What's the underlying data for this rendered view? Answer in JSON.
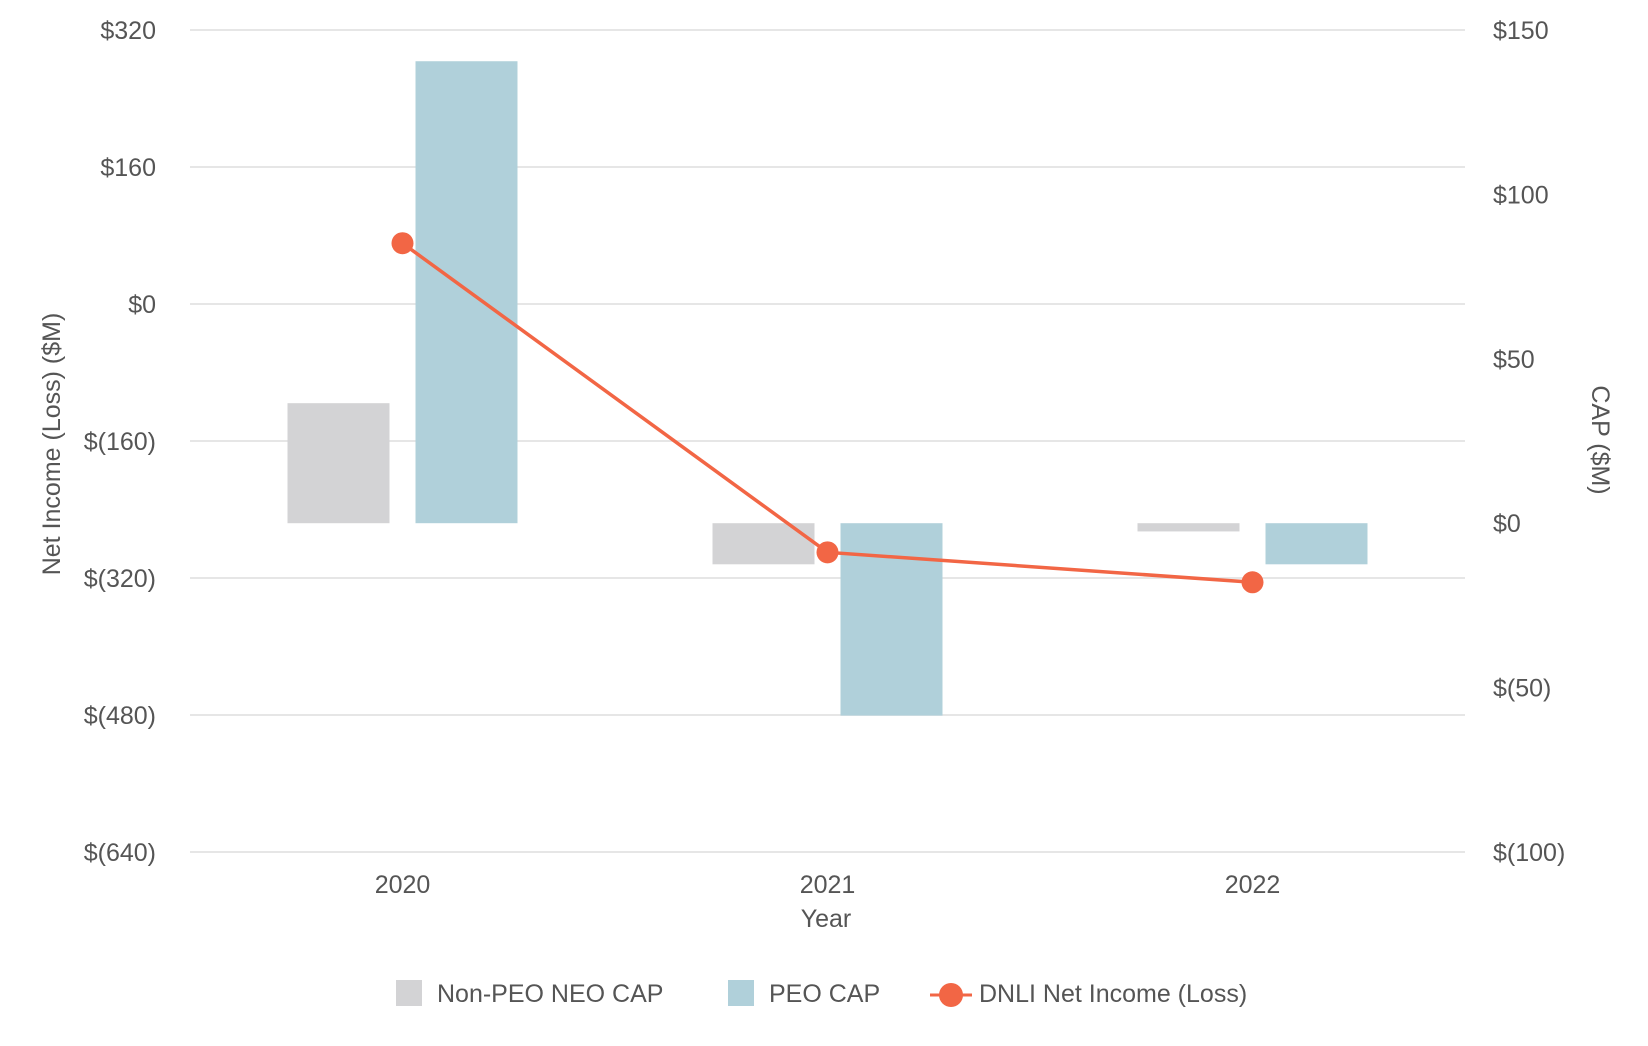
{
  "chart_data": {
    "type": "bar-line-combo",
    "categories": [
      "2020",
      "2021",
      "2022"
    ],
    "xlabel": "Year",
    "ylabel_left": "Net Income (Loss) ($M)",
    "ylabel_right": "CAP ($M)",
    "y_left": {
      "min": -640,
      "max": 320,
      "ticks": [
        320,
        160,
        0,
        -160,
        -320,
        -480,
        -640
      ],
      "tick_labels": [
        "$320",
        "$160",
        "$0",
        "$(160)",
        "$(320)",
        "$(480)",
        "$(640)"
      ]
    },
    "y_right": {
      "min": -100,
      "max": 150,
      "ticks": [
        150,
        100,
        50,
        0,
        -50,
        -100
      ],
      "tick_labels": [
        "$150",
        "$100",
        "$50",
        "$0",
        "$(50)",
        "$(100)"
      ]
    },
    "series": [
      {
        "name": "Non-PEO NEO CAP",
        "type": "bar",
        "axis": "right",
        "color": "#d3d3d5",
        "values": [
          36.5,
          -12.5,
          -2.5
        ]
      },
      {
        "name": "PEO CAP",
        "type": "bar",
        "axis": "right",
        "color": "#b0d0da",
        "values": [
          140.5,
          -58.5,
          -12.5
        ]
      },
      {
        "name": "DNLI Net Income (Loss)",
        "type": "line",
        "axis": "left",
        "color": "#f26645",
        "values": [
          71,
          -290,
          -325
        ]
      }
    ],
    "legend_position": "bottom",
    "grid": true
  }
}
